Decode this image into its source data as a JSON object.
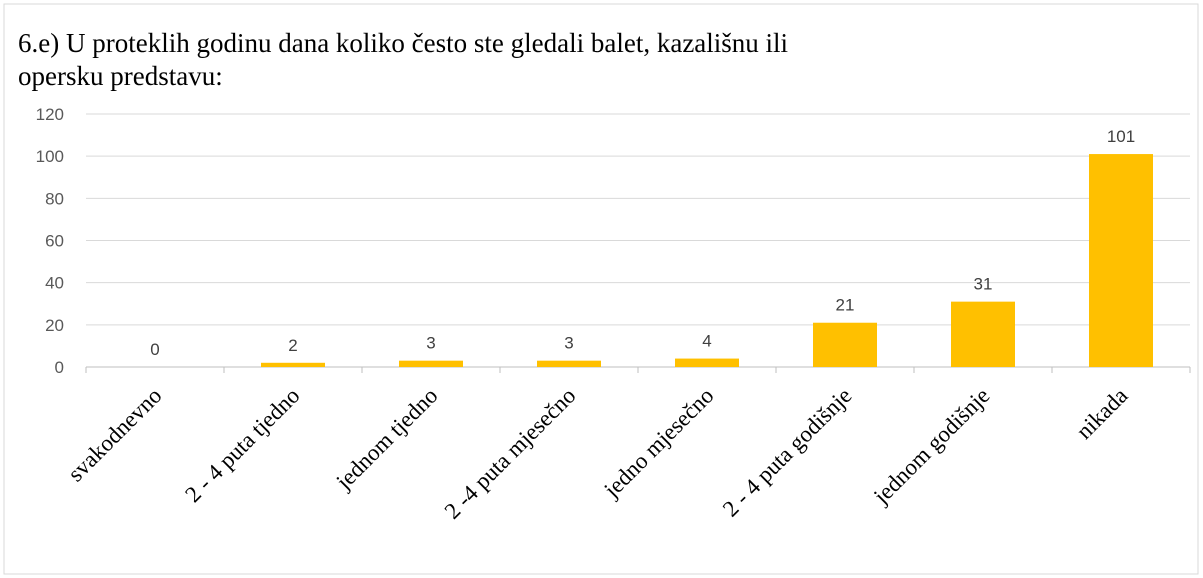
{
  "chart_data": {
    "type": "bar",
    "title": [
      "6.e) U proteklih godinu dana koliko često ste gledali balet, kazališnu ili",
      "opersku predstavu:"
    ],
    "categories": [
      "svakodnevno",
      "2 - 4 puta tjedno",
      "jednom tjedno",
      "2 -4 puta mjesečno",
      "jedno mjesečno",
      "2 - 4 puta godišnje",
      "jednom godišnje",
      "nikada"
    ],
    "values": [
      0,
      2,
      3,
      3,
      4,
      21,
      31,
      101
    ],
    "color": "#ffc000",
    "ylim": [
      0,
      120
    ],
    "yticks": [
      0,
      20,
      40,
      60,
      80,
      100,
      120
    ],
    "grid": true
  }
}
